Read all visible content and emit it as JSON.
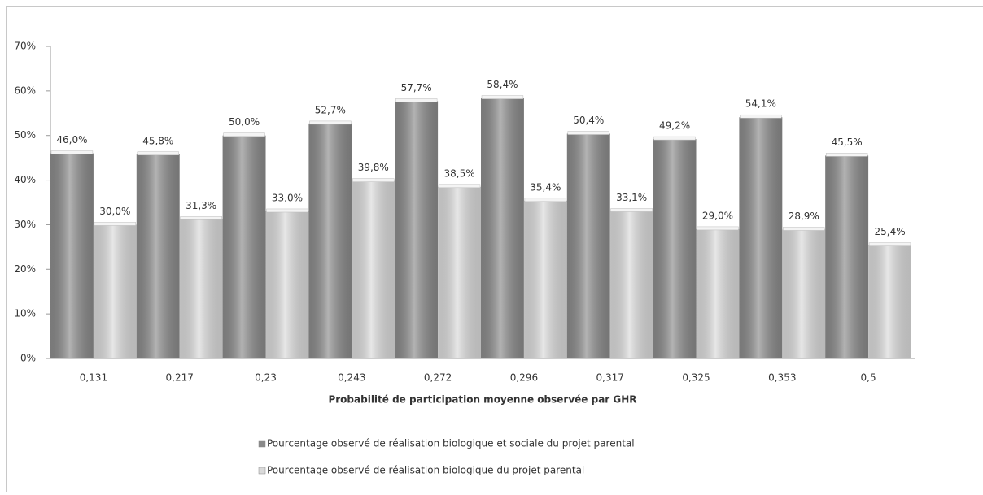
{
  "chart_data": {
    "type": "bar",
    "xlabel": "Probabilité de participation moyenne observée par GHR",
    "categories": [
      "0,131",
      "0,217",
      "0,23",
      "0,243",
      "0,272",
      "0,296",
      "0,317",
      "0,325",
      "0,353",
      "0,5"
    ],
    "series": [
      {
        "name": "Pourcentage observé de réalisation biologique et sociale du projet parental",
        "color": "#8a8a8a",
        "values": [
          46.0,
          45.8,
          50.0,
          52.7,
          57.7,
          58.4,
          50.4,
          49.2,
          54.1,
          45.5
        ],
        "value_labels": [
          "46,0%",
          "45,8%",
          "50,0%",
          "52,7%",
          "57,7%",
          "58,4%",
          "50,4%",
          "49,2%",
          "54,1%",
          "45,5%"
        ]
      },
      {
        "name": "Pourcentage observé de réalisation biologique du projet parental",
        "color": "#dadada",
        "values": [
          30.0,
          31.3,
          33.0,
          39.8,
          38.5,
          35.4,
          33.1,
          29.0,
          28.9,
          25.4
        ],
        "value_labels": [
          "30,0%",
          "31,3%",
          "33,0%",
          "39,8%",
          "38,5%",
          "35,4%",
          "33,1%",
          "29,0%",
          "28,9%",
          "25,4%"
        ]
      }
    ],
    "ylim": [
      0,
      70
    ],
    "yticks": [
      {
        "value": 0,
        "label": "0%"
      },
      {
        "value": 10,
        "label": "10%"
      },
      {
        "value": 20,
        "label": "20%"
      },
      {
        "value": 30,
        "label": "30%"
      },
      {
        "value": 40,
        "label": "40%"
      },
      {
        "value": 50,
        "label": "50%"
      },
      {
        "value": 60,
        "label": "60%"
      },
      {
        "value": 70,
        "label": "70%"
      }
    ],
    "grid": false,
    "legend": "bottom"
  }
}
